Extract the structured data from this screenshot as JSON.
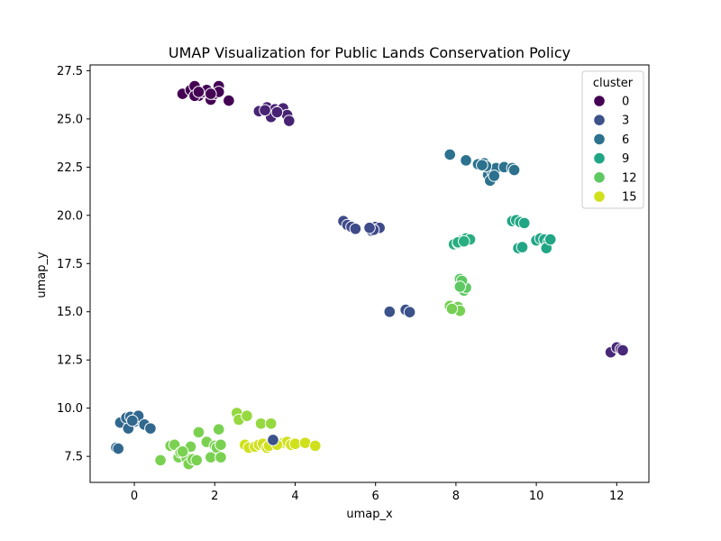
{
  "chart_data": {
    "type": "scatter",
    "title": "UMAP Visualization for Public Lands Conservation Policy",
    "xlabel": "umap_x",
    "ylabel": "umap_y",
    "xlim": [
      -1.1,
      12.8
    ],
    "ylim": [
      6.15,
      27.8
    ],
    "x_ticks": [
      0,
      2,
      4,
      6,
      8,
      10,
      12
    ],
    "y_ticks": [
      7.5,
      10.0,
      12.5,
      15.0,
      17.5,
      20.0,
      22.5,
      25.0,
      27.5
    ],
    "x_tick_labels": [
      "0",
      "2",
      "4",
      "6",
      "8",
      "10",
      "12"
    ],
    "y_tick_labels": [
      "7.5",
      "10.0",
      "12.5",
      "15.0",
      "17.5",
      "20.0",
      "22.5",
      "25.0",
      "27.5"
    ],
    "grid": false,
    "legend": {
      "title": "cluster",
      "placement": "top-right",
      "entries": [
        {
          "label": "0",
          "color": "#440154"
        },
        {
          "label": "3",
          "color": "#3b528b"
        },
        {
          "label": "6",
          "color": "#2c728e"
        },
        {
          "label": "9",
          "color": "#21a685"
        },
        {
          "label": "12",
          "color": "#5ec962"
        },
        {
          "label": "15",
          "color": "#d0e11c"
        }
      ]
    },
    "series": [
      {
        "color": "#440154",
        "points": [
          [
            1.2,
            26.3
          ],
          [
            1.4,
            26.5
          ],
          [
            1.5,
            26.7
          ],
          [
            1.6,
            26.2
          ],
          [
            1.7,
            26.4
          ],
          [
            1.8,
            26.5
          ],
          [
            1.9,
            26.0
          ],
          [
            2.0,
            26.3
          ],
          [
            2.1,
            26.7
          ],
          [
            2.1,
            26.4
          ],
          [
            1.5,
            26.2
          ],
          [
            2.35,
            25.95
          ],
          [
            1.9,
            26.3
          ],
          [
            1.6,
            26.4
          ]
        ]
      },
      {
        "color": "#482374",
        "points": [
          [
            3.1,
            25.4
          ],
          [
            3.3,
            25.6
          ],
          [
            3.4,
            25.3
          ],
          [
            3.5,
            25.5
          ],
          [
            3.6,
            25.4
          ],
          [
            3.7,
            25.55
          ],
          [
            3.8,
            25.2
          ],
          [
            3.85,
            24.9
          ],
          [
            3.4,
            25.1
          ],
          [
            3.25,
            25.45
          ],
          [
            3.55,
            25.35
          ]
        ]
      },
      {
        "color": "#3e4a89",
        "points": [
          [
            5.2,
            19.7
          ],
          [
            5.3,
            19.5
          ],
          [
            5.4,
            19.4
          ],
          [
            5.5,
            19.3
          ],
          [
            5.9,
            19.2
          ],
          [
            6.0,
            19.4
          ],
          [
            6.1,
            19.35
          ],
          [
            5.95,
            19.25
          ],
          [
            5.85,
            19.35
          ]
        ]
      },
      {
        "color": "#3b528b",
        "points": [
          [
            6.35,
            15.0
          ],
          [
            6.75,
            15.1
          ],
          [
            6.85,
            14.98
          ]
        ]
      },
      {
        "color": "#482878",
        "points": [
          [
            11.85,
            12.9
          ],
          [
            12.0,
            13.15
          ],
          [
            12.1,
            13.05
          ],
          [
            12.15,
            13.0
          ]
        ]
      },
      {
        "color": "#2c728e",
        "points": [
          [
            7.85,
            23.15
          ],
          [
            8.25,
            22.85
          ],
          [
            8.55,
            22.65
          ],
          [
            8.7,
            22.7
          ],
          [
            8.8,
            22.1
          ],
          [
            8.9,
            22.3
          ],
          [
            9.0,
            22.45
          ],
          [
            9.2,
            22.5
          ],
          [
            9.4,
            22.45
          ],
          [
            9.45,
            22.35
          ],
          [
            8.85,
            21.8
          ],
          [
            8.95,
            22.05
          ],
          [
            8.75,
            22.55
          ],
          [
            8.65,
            22.6
          ]
        ]
      },
      {
        "color": "#31688e",
        "points": [
          [
            -0.35,
            9.25
          ],
          [
            -0.2,
            9.5
          ],
          [
            -0.1,
            9.55
          ],
          [
            0.0,
            9.3
          ],
          [
            0.05,
            9.45
          ],
          [
            0.1,
            9.6
          ],
          [
            0.25,
            9.15
          ],
          [
            0.4,
            8.95
          ],
          [
            -0.15,
            8.95
          ],
          [
            -0.05,
            9.35
          ],
          [
            -0.45,
            7.95
          ],
          [
            -0.4,
            7.9
          ]
        ]
      },
      {
        "color": "#21a685",
        "points": [
          [
            9.4,
            19.7
          ],
          [
            9.5,
            19.75
          ],
          [
            9.6,
            19.65
          ],
          [
            9.7,
            19.6
          ],
          [
            9.55,
            18.3
          ],
          [
            9.65,
            18.35
          ],
          [
            10.0,
            18.7
          ],
          [
            10.1,
            18.8
          ],
          [
            10.2,
            18.75
          ],
          [
            10.3,
            18.6
          ],
          [
            10.25,
            18.3
          ],
          [
            10.35,
            18.75
          ]
        ]
      },
      {
        "color": "#28ae80",
        "points": [
          [
            7.95,
            18.5
          ],
          [
            8.05,
            18.55
          ],
          [
            8.15,
            18.7
          ],
          [
            8.25,
            18.8
          ],
          [
            8.35,
            18.75
          ],
          [
            8.05,
            18.6
          ],
          [
            8.2,
            18.65
          ]
        ]
      },
      {
        "color": "#5ec962",
        "points": [
          [
            8.1,
            16.7
          ],
          [
            8.15,
            16.4
          ],
          [
            8.2,
            16.1
          ],
          [
            8.25,
            16.25
          ],
          [
            8.15,
            16.6
          ],
          [
            8.1,
            16.3
          ]
        ]
      },
      {
        "color": "#75d054",
        "points": [
          [
            7.85,
            15.3
          ],
          [
            7.95,
            15.2
          ],
          [
            8.05,
            15.25
          ],
          [
            8.1,
            15.05
          ],
          [
            7.9,
            15.15
          ]
        ]
      },
      {
        "color": "#7ad151",
        "points": [
          [
            0.65,
            7.3
          ],
          [
            0.9,
            8.05
          ],
          [
            1.0,
            8.1
          ],
          [
            1.1,
            7.45
          ],
          [
            1.15,
            7.7
          ],
          [
            1.25,
            7.6
          ],
          [
            1.3,
            7.4
          ],
          [
            1.35,
            7.1
          ],
          [
            1.4,
            8.0
          ],
          [
            1.45,
            7.35
          ],
          [
            1.55,
            7.3
          ],
          [
            1.6,
            8.75
          ],
          [
            1.8,
            8.25
          ],
          [
            1.9,
            7.45
          ],
          [
            2.0,
            8.05
          ],
          [
            2.05,
            7.95
          ],
          [
            2.1,
            8.9
          ],
          [
            2.15,
            8.1
          ],
          [
            2.15,
            7.45
          ],
          [
            1.2,
            7.75
          ]
        ]
      },
      {
        "color": "#95d840",
        "points": [
          [
            2.55,
            9.75
          ],
          [
            2.6,
            9.4
          ],
          [
            2.8,
            9.6
          ],
          [
            3.15,
            9.2
          ],
          [
            3.4,
            9.2
          ]
        ]
      },
      {
        "color": "#d0e11c",
        "points": [
          [
            2.75,
            8.1
          ],
          [
            2.85,
            7.95
          ],
          [
            3.0,
            8.0
          ],
          [
            3.1,
            8.1
          ],
          [
            3.2,
            8.15
          ],
          [
            3.3,
            7.95
          ],
          [
            3.35,
            8.05
          ],
          [
            3.7,
            8.2
          ],
          [
            3.8,
            8.25
          ],
          [
            3.9,
            8.1
          ],
          [
            4.0,
            8.15
          ],
          [
            4.25,
            8.2
          ],
          [
            4.5,
            8.05
          ],
          [
            3.55,
            8.1
          ]
        ]
      },
      {
        "color": "#3b528b",
        "points": [
          [
            3.45,
            8.35
          ]
        ]
      }
    ]
  }
}
